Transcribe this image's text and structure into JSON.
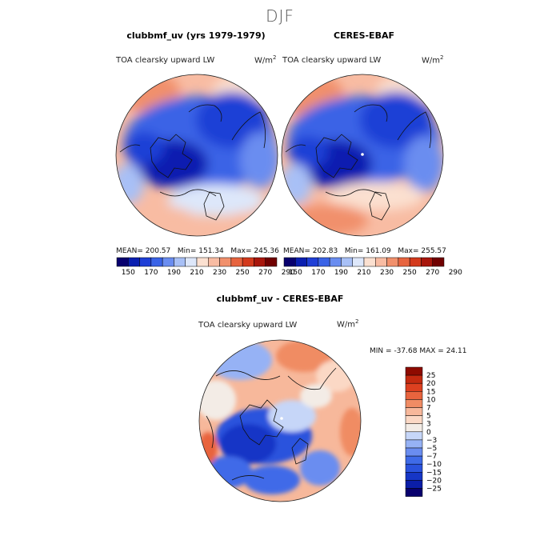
{
  "season": "DJF",
  "colors": {
    "abs_levels": [
      "#08006e",
      "#0a1fb0",
      "#1f3fd6",
      "#3a63e6",
      "#6a8df0",
      "#a8c0f6",
      "#dde7fa",
      "#fbe0d0",
      "#f8bca3",
      "#f1906c",
      "#e7643f",
      "#d33a1d",
      "#a8160c",
      "#700000"
    ],
    "diff_levels": [
      "#08006e",
      "#0b1ea8",
      "#1636c6",
      "#2a52dd",
      "#3f6be8",
      "#6a8df0",
      "#96b2f5",
      "#c6d6f8",
      "#f3ece6",
      "#fbd8c5",
      "#f7b89b",
      "#f08c64",
      "#e8643e",
      "#dd4020",
      "#c42a10",
      "#8e0b00"
    ]
  },
  "panels": {
    "left": {
      "title": "clubbmf_uv (yrs 1979-1979)",
      "variable": "TOA clearsky upward LW",
      "units": "W/m",
      "units_exp": "2",
      "mean_label": "MEAN=",
      "mean": "200.57",
      "min_label": "Min=",
      "min": "151.34",
      "max_label": "Max=",
      "max": "245.36"
    },
    "right": {
      "title": "CERES-EBAF",
      "variable": "TOA clearsky upward LW",
      "units": "W/m",
      "units_exp": "2",
      "mean_label": "MEAN=",
      "mean": "202.83",
      "min_label": "Min=",
      "min": "161.09",
      "max_label": "Max=",
      "max": "255.57"
    },
    "diff": {
      "title": "clubbmf_uv - CERES-EBAF",
      "variable": "TOA clearsky upward LW",
      "units": "W/m",
      "units_exp": "2",
      "min_label": "MIN =",
      "min": "-37.68",
      "max_label": "MAX =",
      "max": "24.11"
    }
  },
  "chart_data": [
    {
      "type": "heatmap",
      "name": "clubbmf_uv",
      "title": "clubbmf_uv (yrs 1979-1979)",
      "projection": "polar stereographic (north)",
      "variable": "TOA clearsky upward LW",
      "units": "W/m2",
      "stats": {
        "mean": 200.57,
        "min": 151.34,
        "max": 245.36
      },
      "colorbar_ticks": [
        "150",
        "170",
        "190",
        "210",
        "230",
        "250",
        "270",
        "290"
      ]
    },
    {
      "type": "heatmap",
      "name": "CERES-EBAF",
      "title": "CERES-EBAF",
      "projection": "polar stereographic (north)",
      "variable": "TOA clearsky upward LW",
      "units": "W/m2",
      "stats": {
        "mean": 202.83,
        "min": 161.09,
        "max": 255.57
      },
      "colorbar_ticks": [
        "150",
        "170",
        "190",
        "210",
        "230",
        "250",
        "270",
        "290"
      ]
    },
    {
      "type": "heatmap",
      "name": "difference",
      "title": "clubbmf_uv - CERES-EBAF",
      "projection": "polar stereographic (north)",
      "variable": "TOA clearsky upward LW",
      "units": "W/m2",
      "stats": {
        "min": -37.68,
        "max": 24.11
      },
      "colorbar_ticks": [
        "25",
        "20",
        "15",
        "10",
        "7",
        "5",
        "3",
        "0",
        "−3",
        "−5",
        "−7",
        "−10",
        "−15",
        "−20",
        "−25"
      ]
    }
  ]
}
